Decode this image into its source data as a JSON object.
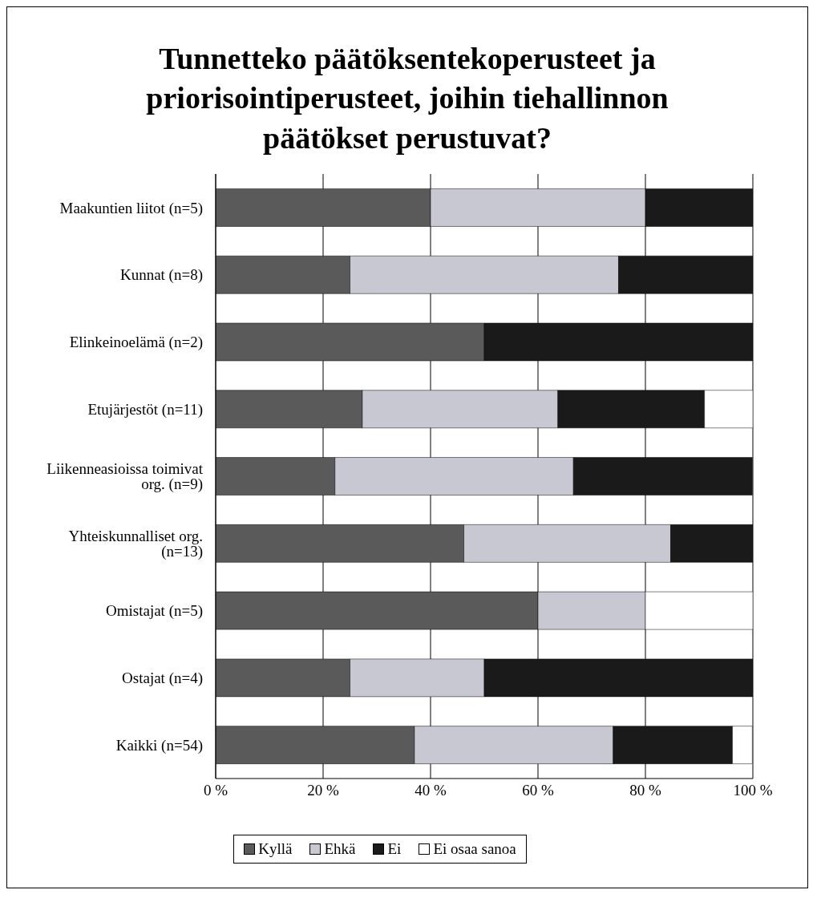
{
  "chart_data": {
    "type": "bar",
    "orientation": "horizontal",
    "stacked": true,
    "title": "Tunnetteko päätöksentekoperusteet ja priorisointiperusteet, joihin tiehallinnon päätökset perustuvat?",
    "categories": [
      "Maakuntien liitot (n=5)",
      "Kunnat (n=8)",
      "Elinkeinoelämä (n=2)",
      "Etujärjestöt (n=11)",
      "Liikenneasioissa toimivat org. (n=9)",
      "Yhteiskunnalliset org. (n=13)",
      "Omistajat (n=5)",
      "Ostajat (n=4)",
      "Kaikki (n=54)"
    ],
    "series": [
      {
        "name": "Kyllä",
        "color": "#5a5a5a",
        "values": [
          40,
          25,
          50,
          27.3,
          22.2,
          46.2,
          60,
          25,
          37.0
        ]
      },
      {
        "name": "Ehkä",
        "color": "#c8c8d2",
        "values": [
          40,
          50,
          0,
          36.4,
          44.4,
          38.5,
          20,
          25,
          37.0
        ]
      },
      {
        "name": "Ei",
        "color": "#1a1a1a",
        "values": [
          20,
          25,
          50,
          27.3,
          33.3,
          15.4,
          0,
          50,
          22.2
        ]
      },
      {
        "name": "Ei osaa sanoa",
        "color": "#ffffff",
        "values": [
          0,
          0,
          0,
          9.1,
          0,
          0,
          20,
          0,
          3.7
        ]
      }
    ],
    "xlim": [
      0,
      100
    ],
    "xticks": [
      {
        "value": 0,
        "label": "0 %"
      },
      {
        "value": 20,
        "label": "20 %"
      },
      {
        "value": 40,
        "label": "40 %"
      },
      {
        "value": 60,
        "label": "60 %"
      },
      {
        "value": 80,
        "label": "80 %"
      },
      {
        "value": 100,
        "label": "100 %"
      }
    ],
    "grid": "x",
    "legend": "bottom"
  }
}
